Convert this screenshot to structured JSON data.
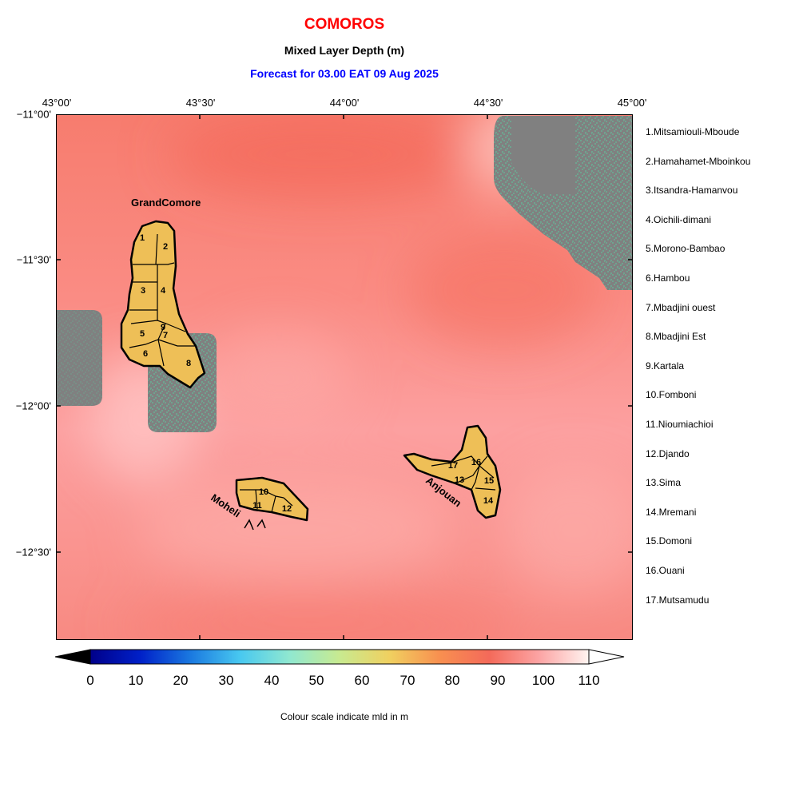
{
  "header": {
    "title": "COMOROS",
    "subtitle": "Mixed Layer Depth (m)",
    "forecast": "Forecast for  03.00 EAT 09 Aug 2025"
  },
  "map": {
    "lon_labels": [
      "43°00'",
      "43°30'",
      "44°00'",
      "44°30'",
      "45°00'"
    ],
    "lat_labels": [
      "−11°00'",
      "−11°30'",
      "−12°00'",
      "−12°30'"
    ],
    "island_labels": {
      "grand_comore": "GrandComore",
      "moheli": "Moheli",
      "anjouan": "Anjouan"
    },
    "region_numbers": [
      "1",
      "2",
      "3",
      "4",
      "5",
      "6",
      "7",
      "8",
      "9",
      "10",
      "11",
      "12",
      "13",
      "14",
      "15",
      "16",
      "17"
    ],
    "colors": {
      "land": "#eebf57",
      "nodata": "#808080",
      "sea_base": "#fa8a80"
    }
  },
  "regions": [
    "1.Mitsamiouli-Mboude",
    "2.Hamahamet-Mboinkou",
    "3.Itsandra-Hamanvou",
    "4.Oichili-dimani",
    "5.Morono-Bambao",
    "6.Hambou",
    "7.Mbadjini ouest",
    "8.Mbadjini Est",
    "9.Kartala",
    "10.Fomboni",
    "11.Nioumiachioi",
    "12.Djando",
    "13.Sima",
    "14.Mremani",
    "15.Domoni",
    "16.Ouani",
    "17.Mutsamudu"
  ],
  "colorbar": {
    "ticks": [
      "0",
      "10",
      "20",
      "30",
      "40",
      "50",
      "60",
      "70",
      "80",
      "90",
      "100",
      "110"
    ],
    "caption": "Colour scale indicate mld in m"
  }
}
